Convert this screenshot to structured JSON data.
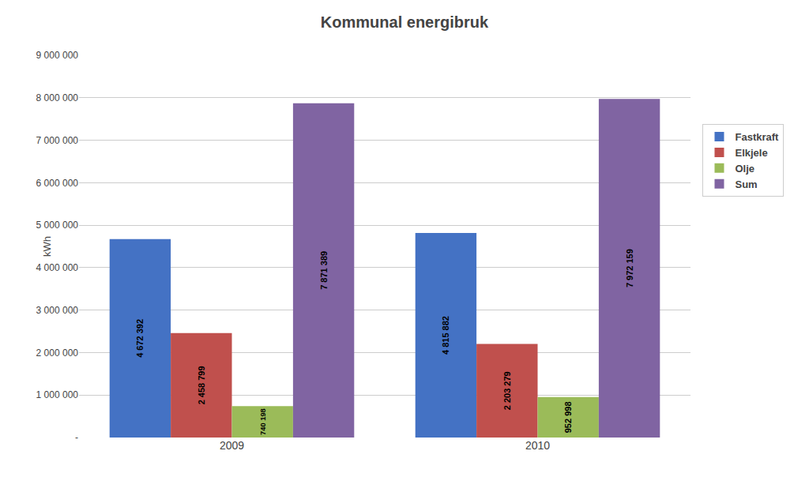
{
  "chart_data": {
    "type": "bar",
    "title": "Kommunal energibruk",
    "ylabel": "kWh",
    "categories": [
      "2009",
      "2010"
    ],
    "series": [
      {
        "name": "Fastkraft",
        "color": "#4472C4",
        "values": [
          4672392,
          4815882
        ],
        "value_labels": [
          "4 672 392",
          "4 815 882"
        ]
      },
      {
        "name": "Elkjele",
        "color": "#C0504D",
        "values": [
          2458799,
          2203279
        ],
        "value_labels": [
          "2 458 799",
          "2 203 279"
        ]
      },
      {
        "name": "Olje",
        "color": "#9BBB59",
        "values": [
          740198,
          952998
        ],
        "value_labels": [
          "740 198",
          "952 998"
        ]
      },
      {
        "name": "Sum",
        "color": "#8064A2",
        "values": [
          7871389,
          7972159
        ],
        "value_labels": [
          "7 871 389",
          "7 972 159"
        ]
      }
    ],
    "ylim": [
      0,
      9000000
    ],
    "yticks": [
      {
        "value": 0,
        "label": "-"
      },
      {
        "value": 1000000,
        "label": "1 000 000"
      },
      {
        "value": 2000000,
        "label": "2 000 000"
      },
      {
        "value": 3000000,
        "label": "3 000 000"
      },
      {
        "value": 4000000,
        "label": "4 000 000"
      },
      {
        "value": 5000000,
        "label": "5 000 000"
      },
      {
        "value": 6000000,
        "label": "6 000 000"
      },
      {
        "value": 7000000,
        "label": "7 000 000"
      },
      {
        "value": 8000000,
        "label": "8 000 000"
      },
      {
        "value": 9000000,
        "label": "9 000 000"
      }
    ],
    "grid": true,
    "legend": "right",
    "data_labels": true
  }
}
